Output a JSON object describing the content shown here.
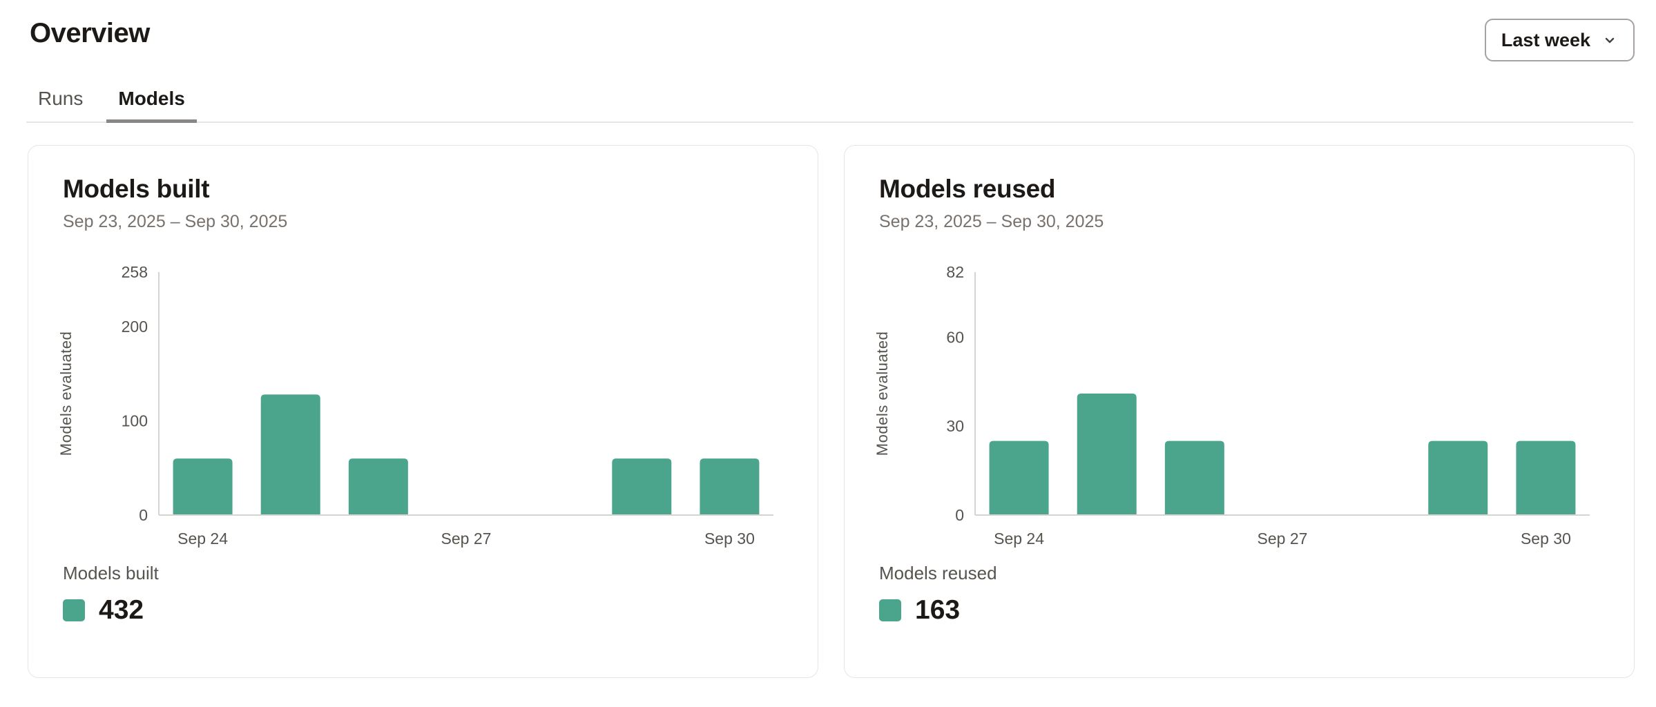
{
  "page": {
    "title": "Overview"
  },
  "period_selector": {
    "label": "Last week",
    "icon": "chevron-down-icon"
  },
  "tabs": [
    {
      "label": "Runs",
      "active": false
    },
    {
      "label": "Models",
      "active": true
    }
  ],
  "colors": {
    "accent_teal": "#4BA58C",
    "axis_line": "#d6d3d1",
    "tick_text": "#57534e",
    "divider": "#e7e5e4",
    "active_tab_underline": "#8a8683"
  },
  "cards": [
    {
      "title": "Models built",
      "date_range": "Sep 23, 2025 – Sep 30, 2025",
      "legend": {
        "label": "Models built",
        "value": 432,
        "swatch_color": "#4BA58C"
      },
      "chart_data": {
        "type": "bar",
        "title": "Models built",
        "categories": [
          "Sep 24",
          "Sep 25",
          "Sep 26",
          "Sep 27",
          "Sep 28",
          "Sep 29",
          "Sep 30"
        ],
        "values": [
          60,
          128,
          60,
          0,
          0,
          60,
          60
        ],
        "x_tick_labels": [
          "Sep 24",
          "Sep 27",
          "Sep 30"
        ],
        "x_tick_positions": [
          0,
          3,
          6
        ],
        "y_ticks": [
          0,
          100,
          200,
          258
        ],
        "ylim": [
          0,
          258
        ],
        "xlabel": "",
        "ylabel": "Models evaluated",
        "grid": false,
        "legend_position": "bottom-left",
        "bar_color": "#4BA58C",
        "total": 432
      }
    },
    {
      "title": "Models reused",
      "date_range": "Sep 23, 2025 – Sep 30, 2025",
      "legend": {
        "label": "Models reused",
        "value": 163,
        "swatch_color": "#4BA58C"
      },
      "chart_data": {
        "type": "bar",
        "title": "Models reused",
        "categories": [
          "Sep 24",
          "Sep 25",
          "Sep 26",
          "Sep 27",
          "Sep 28",
          "Sep 29",
          "Sep 30"
        ],
        "values": [
          25,
          41,
          25,
          0,
          0,
          25,
          25
        ],
        "x_tick_labels": [
          "Sep 24",
          "Sep 27",
          "Sep 30"
        ],
        "x_tick_positions": [
          0,
          3,
          6
        ],
        "y_ticks": [
          0,
          30,
          60,
          82
        ],
        "ylim": [
          0,
          82
        ],
        "xlabel": "",
        "ylabel": "Models evaluated",
        "grid": false,
        "legend_position": "bottom-left",
        "bar_color": "#4BA58C",
        "total": 163
      }
    }
  ]
}
